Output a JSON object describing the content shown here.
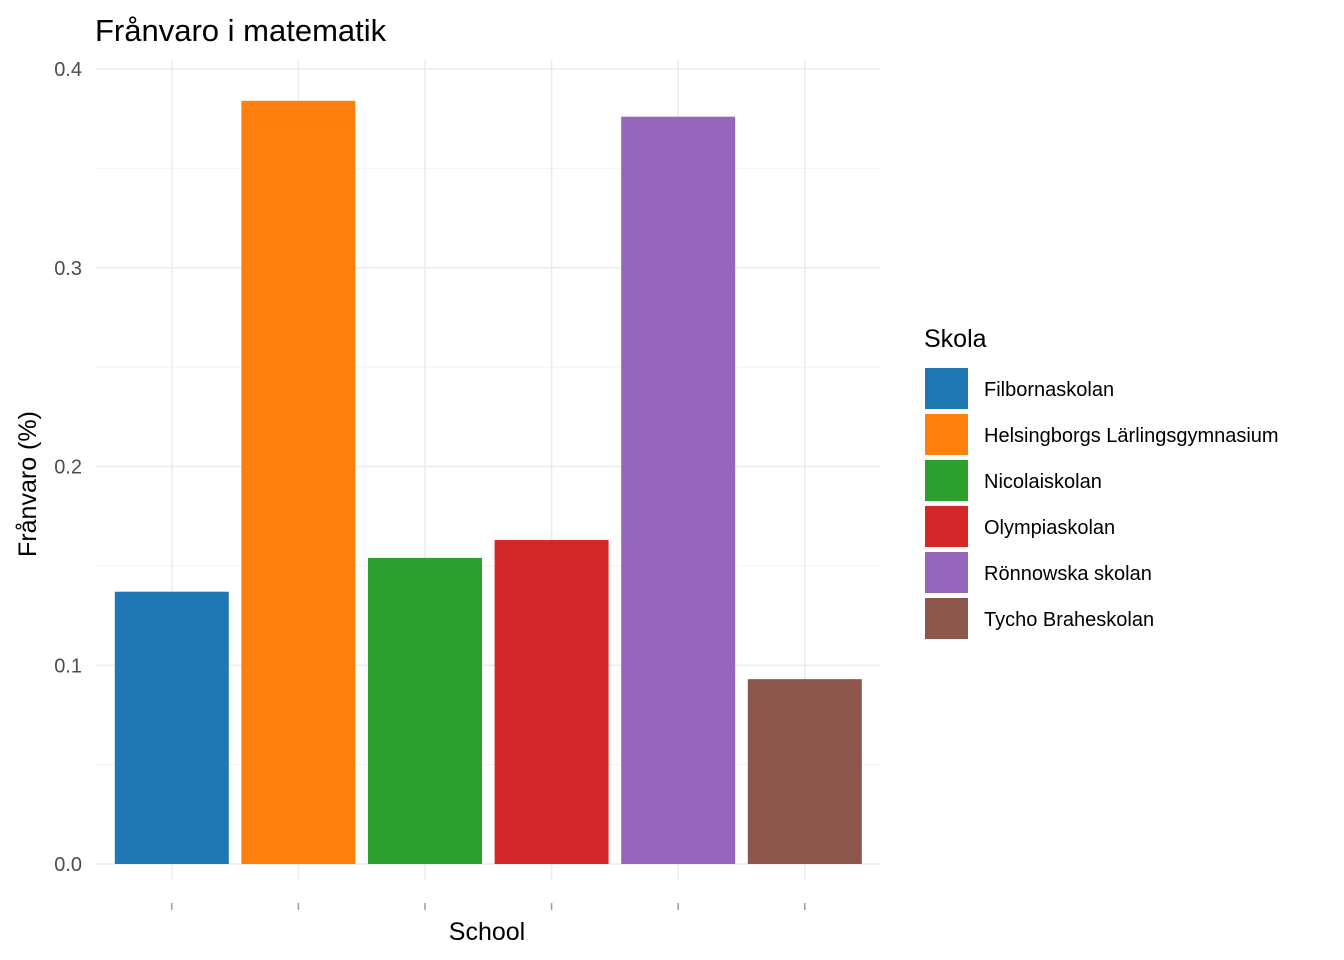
{
  "chart_data": {
    "type": "bar",
    "title": "Frånvaro i  matematik",
    "xlabel": "School",
    "ylabel": "Frånvaro (%)",
    "ylim": [
      0,
      0.4
    ],
    "yticks": [
      "0.0",
      "0.1",
      "0.2",
      "0.3",
      "0.4"
    ],
    "grid": true,
    "legend_position": "right",
    "legend_title": "Skola",
    "categories": [
      "Filbornaskolan",
      "Helsingborgs Lärlingsgymnasium",
      "Nicolaiskolan",
      "Olympiaskolan",
      "Rönnowska skolan",
      "Tycho Braheskolan"
    ],
    "values": [
      0.137,
      0.384,
      0.154,
      0.163,
      0.376,
      0.093
    ],
    "colors": [
      "#1f77b4",
      "#ff7f0e",
      "#2ca02c",
      "#d62728",
      "#9467bd",
      "#8c564b"
    ]
  }
}
